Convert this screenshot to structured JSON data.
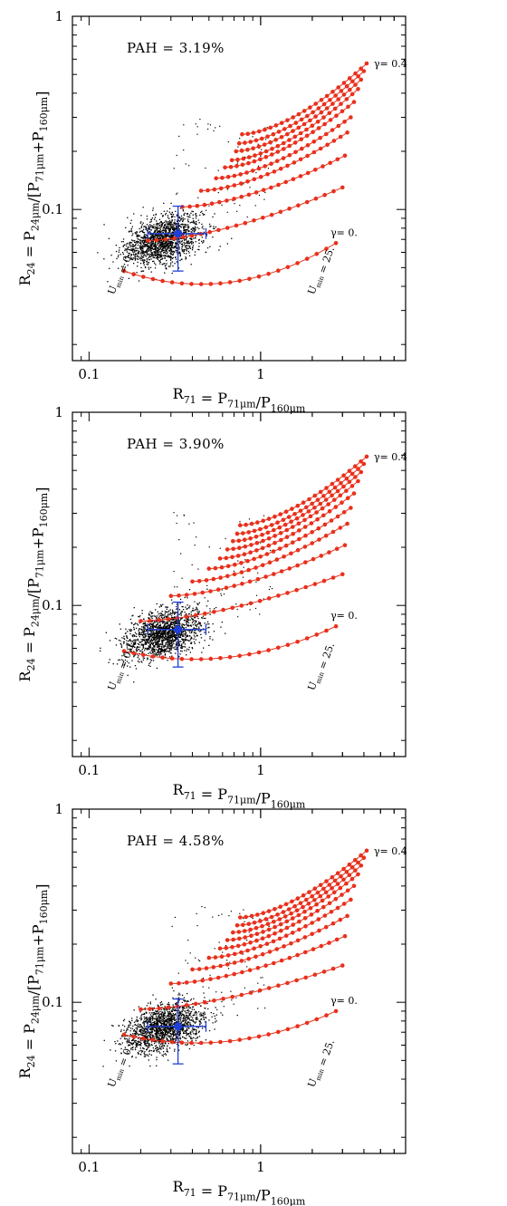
{
  "chart_data": [
    {
      "type": "scatter",
      "title": "PAH = 3.19%",
      "xlabel": "R71 = P71μm/P160μm",
      "ylabel": "R24 = P24μm/[P71μm+P160μm]",
      "xscale": "log",
      "yscale": "log",
      "xlim": [
        0.08,
        7.0
      ],
      "ylim": [
        0.0165,
        1.0
      ],
      "x_tick_labels": [
        {
          "value": 0.1,
          "label": "0.1"
        },
        {
          "value": 1,
          "label": "1"
        }
      ],
      "y_tick_labels": [
        {
          "value": 0.1,
          "label": "0.1"
        },
        {
          "value": 1,
          "label": "1"
        }
      ],
      "annotations": {
        "gamma_high": "γ= 0.4",
        "gamma_low": "γ= 0.",
        "umin_low": "Umin = 0.1",
        "umin_high": "Umin = 25."
      },
      "cloud": {
        "center": [
          0.27,
          0.07
        ],
        "spread_x_dex": 0.11,
        "spread_y_dex": 0.06
      },
      "measurement": {
        "x": 0.33,
        "y": 0.075,
        "x_err": [
          0.22,
          0.48
        ],
        "y_err": [
          0.048,
          0.104
        ]
      },
      "model_curves": [
        {
          "gamma": 0.0,
          "x_start": 0.16,
          "x_end": 2.75,
          "y_start": 0.048,
          "y_min": 0.042,
          "y_end": 0.067
        },
        {
          "x_start": 0.22,
          "x_end": 3.0,
          "y_start": 0.069,
          "y_end": 0.13
        },
        {
          "x_start": 0.35,
          "x_end": 3.1,
          "y_start": 0.103,
          "y_end": 0.19
        },
        {
          "x_start": 0.45,
          "x_end": 3.2,
          "y_start": 0.125,
          "y_end": 0.25
        },
        {
          "x_start": 0.55,
          "x_end": 3.35,
          "y_start": 0.145,
          "y_end": 0.3
        },
        {
          "x_start": 0.62,
          "x_end": 3.5,
          "y_start": 0.165,
          "y_end": 0.36
        },
        {
          "x_start": 0.68,
          "x_end": 3.7,
          "y_start": 0.18,
          "y_end": 0.42
        },
        {
          "x_start": 0.72,
          "x_end": 3.85,
          "y_start": 0.2,
          "y_end": 0.47
        },
        {
          "x_start": 0.75,
          "x_end": 4.0,
          "y_start": 0.22,
          "y_end": 0.52
        },
        {
          "gamma": 0.4,
          "x_start": 0.78,
          "x_end": 4.15,
          "y_start": 0.245,
          "y_end": 0.57
        }
      ]
    },
    {
      "type": "scatter",
      "title": "PAH = 3.90%",
      "xlabel": "R71 = P71μm/P160μm",
      "ylabel": "R24 = P24μm/[P71μm+P160μm]",
      "xscale": "log",
      "yscale": "log",
      "xlim": [
        0.08,
        7.0
      ],
      "ylim": [
        0.0165,
        1.0
      ],
      "x_tick_labels": [
        {
          "value": 0.1,
          "label": "0.1"
        },
        {
          "value": 1,
          "label": "1"
        }
      ],
      "y_tick_labels": [
        {
          "value": 0.1,
          "label": "0.1"
        },
        {
          "value": 1,
          "label": "1"
        }
      ],
      "annotations": {
        "gamma_high": "γ= 0.4",
        "gamma_low": "γ= 0.",
        "umin_low": "Umin = 0.1",
        "umin_high": "Umin = 25."
      },
      "cloud": {
        "center": [
          0.27,
          0.072
        ],
        "spread_x_dex": 0.11,
        "spread_y_dex": 0.06
      },
      "measurement": {
        "x": 0.33,
        "y": 0.075,
        "x_err": [
          0.22,
          0.48
        ],
        "y_err": [
          0.048,
          0.104
        ]
      },
      "model_curves": [
        {
          "gamma": 0.0,
          "x_start": 0.16,
          "x_end": 2.75,
          "y_start": 0.058,
          "y_min": 0.054,
          "y_end": 0.078
        },
        {
          "x_start": 0.2,
          "x_end": 3.0,
          "y_start": 0.083,
          "y_end": 0.145
        },
        {
          "x_start": 0.3,
          "x_end": 3.1,
          "y_start": 0.112,
          "y_end": 0.205
        },
        {
          "x_start": 0.4,
          "x_end": 3.2,
          "y_start": 0.133,
          "y_end": 0.265
        },
        {
          "x_start": 0.5,
          "x_end": 3.35,
          "y_start": 0.155,
          "y_end": 0.32
        },
        {
          "x_start": 0.58,
          "x_end": 3.5,
          "y_start": 0.175,
          "y_end": 0.38
        },
        {
          "x_start": 0.64,
          "x_end": 3.7,
          "y_start": 0.195,
          "y_end": 0.44
        },
        {
          "x_start": 0.69,
          "x_end": 3.85,
          "y_start": 0.215,
          "y_end": 0.49
        },
        {
          "x_start": 0.73,
          "x_end": 4.0,
          "y_start": 0.235,
          "y_end": 0.54
        },
        {
          "gamma": 0.4,
          "x_start": 0.76,
          "x_end": 4.15,
          "y_start": 0.26,
          "y_end": 0.59
        }
      ]
    },
    {
      "type": "scatter",
      "title": "PAH = 4.58%",
      "xlabel": "R71 = P71μm/P160μm",
      "ylabel": "R24 = P24μm/[P71μm+P160μm]",
      "xscale": "log",
      "yscale": "log",
      "xlim": [
        0.08,
        7.0
      ],
      "ylim": [
        0.0165,
        1.0
      ],
      "x_tick_labels": [
        {
          "value": 0.1,
          "label": "0.1"
        },
        {
          "value": 1,
          "label": "1"
        }
      ],
      "y_tick_labels": [
        {
          "value": 0.1,
          "label": "0.1"
        },
        {
          "value": 1,
          "label": "1"
        }
      ],
      "annotations": {
        "gamma_high": "γ= 0.4",
        "gamma_low": "γ= 0.",
        "umin_low": "Umin = 0.1",
        "umin_high": "Umin = 25."
      },
      "cloud": {
        "center": [
          0.27,
          0.074
        ],
        "spread_x_dex": 0.11,
        "spread_y_dex": 0.06
      },
      "measurement": {
        "x": 0.33,
        "y": 0.075,
        "x_err": [
          0.22,
          0.48
        ],
        "y_err": [
          0.048,
          0.104
        ]
      },
      "model_curves": [
        {
          "gamma": 0.0,
          "x_start": 0.16,
          "x_end": 2.75,
          "y_start": 0.068,
          "y_min": 0.063,
          "y_end": 0.09
        },
        {
          "x_start": 0.2,
          "x_end": 3.0,
          "y_start": 0.092,
          "y_end": 0.155
        },
        {
          "x_start": 0.3,
          "x_end": 3.1,
          "y_start": 0.125,
          "y_end": 0.22
        },
        {
          "x_start": 0.4,
          "x_end": 3.2,
          "y_start": 0.148,
          "y_end": 0.28
        },
        {
          "x_start": 0.5,
          "x_end": 3.35,
          "y_start": 0.17,
          "y_end": 0.34
        },
        {
          "x_start": 0.58,
          "x_end": 3.5,
          "y_start": 0.19,
          "y_end": 0.4
        },
        {
          "x_start": 0.64,
          "x_end": 3.7,
          "y_start": 0.21,
          "y_end": 0.46
        },
        {
          "x_start": 0.69,
          "x_end": 3.85,
          "y_start": 0.23,
          "y_end": 0.51
        },
        {
          "x_start": 0.73,
          "x_end": 4.0,
          "y_start": 0.25,
          "y_end": 0.56
        },
        {
          "gamma": 0.4,
          "x_start": 0.76,
          "x_end": 4.15,
          "y_start": 0.275,
          "y_end": 0.61
        }
      ]
    }
  ],
  "colors": {
    "model_curve": "#e8301c",
    "data_points": "#000000",
    "measurement": "#1f3fd6",
    "axes": "#000000"
  }
}
